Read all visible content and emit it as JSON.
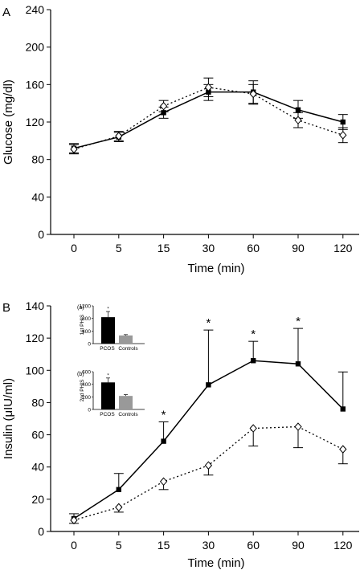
{
  "panels": [
    {
      "letter": "A",
      "chart_data": {
        "type": "line",
        "xlabel": "Time (min)",
        "ylabel": "Glucose (mg/dl)",
        "categories": [
          "0",
          "5",
          "15",
          "30",
          "60",
          "90",
          "120"
        ],
        "ylim": [
          0,
          240
        ],
        "yticks": [
          0,
          40,
          80,
          120,
          160,
          200,
          240
        ],
        "series": [
          {
            "marker": "filled-square",
            "line": "solid",
            "values": [
              92,
              104,
              130,
              152,
              152,
              133,
              120
            ],
            "err_up": [
              5,
              5,
              6,
              8,
              12,
              10,
              8
            ],
            "err_down": [
              5,
              5,
              6,
              9,
              13,
              9,
              8
            ]
          },
          {
            "marker": "open-diamond",
            "line": "dotted",
            "values": [
              91,
              105,
              137,
              157,
              150,
              122,
              106
            ],
            "err_up": [
              5,
              5,
              6,
              10,
              10,
              8,
              8
            ],
            "err_down": [
              5,
              5,
              6,
              10,
              10,
              8,
              8
            ]
          }
        ],
        "grid": false
      }
    },
    {
      "letter": "B",
      "chart_data": {
        "type": "line",
        "xlabel": "Time (min)",
        "ylabel": "Insulin (μIU/ml)",
        "categories": [
          "0",
          "5",
          "15",
          "30",
          "60",
          "90",
          "120"
        ],
        "ylim": [
          0,
          140
        ],
        "yticks": [
          0,
          20,
          40,
          60,
          80,
          100,
          120,
          140
        ],
        "series": [
          {
            "marker": "filled-square",
            "line": "solid",
            "values": [
              8,
              26,
              56,
              91,
              106,
              104,
              76
            ],
            "err_up": [
              3,
              10,
              12,
              34,
              12,
              22,
              23
            ],
            "err_down": [
              0,
              0,
              0,
              0,
              0,
              0,
              0
            ]
          },
          {
            "marker": "open-diamond",
            "line": "dotted",
            "values": [
              7,
              15,
              31,
              41,
              64,
              65,
              51
            ],
            "err_up": [
              0,
              0,
              0,
              0,
              0,
              0,
              0
            ],
            "err_down": [
              2,
              3,
              5,
              6,
              11,
              13,
              9
            ]
          }
        ],
        "significance": [
          "",
          "",
          "*",
          "*",
          "*",
          "*",
          ""
        ],
        "grid": false
      },
      "insets": [
        {
          "label": "(a)",
          "ylabel": "1st PHIS",
          "chart_data": {
            "type": "bar",
            "categories": [
              "PCOS",
              "Controls"
            ],
            "values": [
              840,
              260
            ],
            "err": [
              180,
              25
            ],
            "ylim": [
              0,
              1200
            ],
            "yticks": [
              0,
              400,
              800,
              1200
            ],
            "significance": [
              "*",
              ""
            ]
          }
        },
        {
          "label": "(b)",
          "ylabel": "2nd PHIS",
          "chart_data": {
            "type": "bar",
            "categories": [
              "PCOS",
              "Controls"
            ],
            "values": [
              430,
              215
            ],
            "err": [
              70,
              20
            ],
            "ylim": [
              0,
              600
            ],
            "yticks": [
              0,
              200,
              400,
              600
            ],
            "significance": [
              "*",
              ""
            ]
          }
        }
      ]
    }
  ],
  "colors": {
    "pcos_bar": "#000000",
    "controls_bar": "#999999",
    "ink": "#000000"
  }
}
